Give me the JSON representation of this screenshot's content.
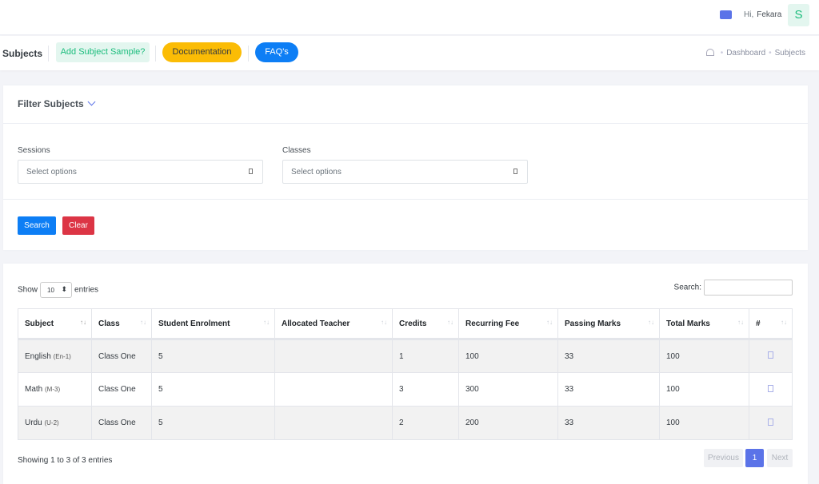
{
  "header": {
    "greeting": "Hi,",
    "user": "Fekara",
    "avatar_letter": "S",
    "mail_icon": "mail-icon"
  },
  "subheader": {
    "title": "Subjects",
    "add_sample": "Add Subject Sample?",
    "documentation": "Documentation",
    "faq": "FAQ's",
    "breadcrumb": [
      "Dashboard",
      "Subjects"
    ]
  },
  "filter": {
    "title": "Filter Subjects",
    "sessions_label": "Sessions",
    "sessions_placeholder": "Select options",
    "classes_label": "Classes",
    "classes_placeholder": "Select options",
    "search": "Search",
    "clear": "Clear"
  },
  "table": {
    "show": "Show",
    "length": "10",
    "entries": "entries",
    "search_label": "Search:",
    "columns": [
      "Subject",
      "Class",
      "Student Enrolment",
      "Allocated Teacher",
      "Credits",
      "Recurring Fee",
      "Passing Marks",
      "Total Marks",
      "#"
    ],
    "rows": [
      {
        "subject": "English",
        "code": "(En-1)",
        "class": "Class One",
        "enrolment": "5",
        "teacher": "",
        "credits": "1",
        "fee": "100",
        "passing": "33",
        "total": "100"
      },
      {
        "subject": "Math",
        "code": "(M-3)",
        "class": "Class One",
        "enrolment": "5",
        "teacher": "",
        "credits": "3",
        "fee": "300",
        "passing": "33",
        "total": "100"
      },
      {
        "subject": "Urdu",
        "code": "(U-2)",
        "class": "Class One",
        "enrolment": "5",
        "teacher": "",
        "credits": "2",
        "fee": "200",
        "passing": "33",
        "total": "100"
      }
    ],
    "info": "Showing 1 to 3 of 3 entries",
    "previous": "Previous",
    "page": "1",
    "next": "Next"
  },
  "colors": {
    "primary": "#0d7ef5",
    "warning": "#fbbc05",
    "danger": "#dc3545",
    "success": "#1abc7c",
    "accent": "#5b73e8"
  }
}
